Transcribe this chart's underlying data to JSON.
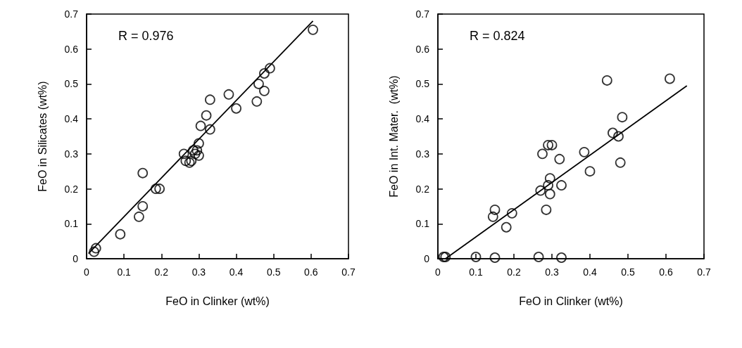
{
  "chart_data": [
    {
      "type": "scatter",
      "xlabel": "FeO in Clinker (wt%)",
      "ylabel": "FeO in Silicates (wt%)",
      "annotations": [
        "R = 0.976"
      ],
      "xlim": [
        0,
        0.7
      ],
      "ylim": [
        0,
        0.7
      ],
      "xticks": [
        0,
        0.1,
        0.2,
        0.3,
        0.4,
        0.5,
        0.6,
        0.7
      ],
      "yticks": [
        0,
        0.1,
        0.2,
        0.3,
        0.4,
        0.5,
        0.6,
        0.7
      ],
      "grid": false,
      "marker": "circle",
      "series": [
        {
          "color": "#000000",
          "x": [
            0.02,
            0.025,
            0.09,
            0.14,
            0.15,
            0.15,
            0.185,
            0.195,
            0.26,
            0.265,
            0.275,
            0.28,
            0.285,
            0.29,
            0.295,
            0.3,
            0.3,
            0.305,
            0.32,
            0.33,
            0.33,
            0.38,
            0.4,
            0.455,
            0.46,
            0.475,
            0.475,
            0.49,
            0.605
          ],
          "values": [
            0.02,
            0.03,
            0.07,
            0.12,
            0.15,
            0.245,
            0.2,
            0.2,
            0.3,
            0.28,
            0.275,
            0.28,
            0.31,
            0.3,
            0.31,
            0.33,
            0.295,
            0.38,
            0.41,
            0.455,
            0.37,
            0.47,
            0.43,
            0.45,
            0.5,
            0.53,
            0.48,
            0.545,
            0.655
          ]
        },
        {
          "type": "line",
          "color": "#000000",
          "marker": "none",
          "line_style": "solid",
          "x": [
            0.005,
            0.605
          ],
          "values": [
            0.015,
            0.68
          ]
        }
      ]
    },
    {
      "type": "scatter",
      "xlabel": "FeO in Clinker (wt%)",
      "ylabel": "FeO in Int. Mater.  (wt%)",
      "annotations": [
        "R = 0.824"
      ],
      "xlim": [
        0,
        0.7
      ],
      "ylim": [
        0,
        0.7
      ],
      "xticks": [
        0,
        0.1,
        0.2,
        0.3,
        0.4,
        0.5,
        0.6,
        0.7
      ],
      "yticks": [
        0,
        0.1,
        0.2,
        0.3,
        0.4,
        0.5,
        0.6,
        0.7
      ],
      "grid": false,
      "marker": "circle",
      "series": [
        {
          "color": "#000000",
          "x": [
            0.015,
            0.02,
            0.1,
            0.15,
            0.145,
            0.15,
            0.18,
            0.195,
            0.265,
            0.27,
            0.275,
            0.285,
            0.29,
            0.29,
            0.295,
            0.295,
            0.3,
            0.32,
            0.325,
            0.325,
            0.385,
            0.4,
            0.445,
            0.46,
            0.475,
            0.48,
            0.485,
            0.61
          ],
          "values": [
            0.005,
            0.005,
            0.005,
            0.003,
            0.12,
            0.14,
            0.09,
            0.13,
            0.005,
            0.195,
            0.3,
            0.14,
            0.325,
            0.21,
            0.185,
            0.23,
            0.325,
            0.285,
            0.21,
            0.003,
            0.305,
            0.25,
            0.51,
            0.36,
            0.35,
            0.275,
            0.405,
            0.515
          ]
        },
        {
          "type": "line",
          "color": "#000000",
          "marker": "none",
          "line_style": "solid",
          "x": [
            0.02,
            0.655
          ],
          "values": [
            0.0,
            0.495
          ]
        }
      ]
    }
  ]
}
